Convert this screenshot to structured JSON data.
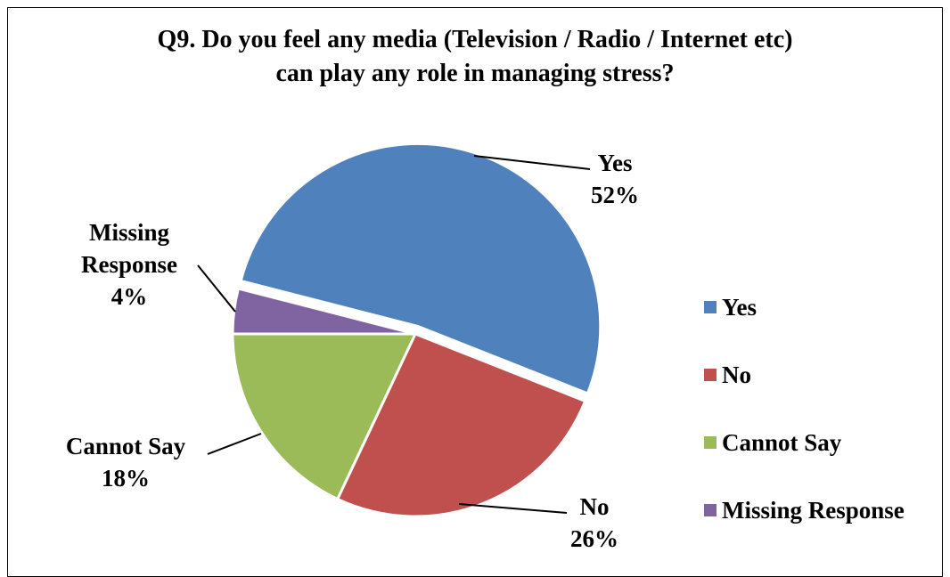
{
  "chart_data": {
    "type": "pie",
    "title_lines": [
      "Q9. Do you feel any media (Television / Radio / Internet etc)",
      "can play any role in managing stress?"
    ],
    "slices": [
      {
        "label": "Yes",
        "value": 52,
        "value_label": "52%",
        "color": "#4F81BD"
      },
      {
        "label": "No",
        "value": 26,
        "value_label": "26%",
        "color": "#C0504D"
      },
      {
        "label": "Cannot Say",
        "value": 18,
        "value_label": "18%",
        "color": "#9BBB59"
      },
      {
        "label": "Missing Response",
        "value": 4,
        "value_label": "4%",
        "color": "#8064A2"
      }
    ],
    "data_label_lines": {
      "Yes": [
        "Yes",
        "52%"
      ],
      "No": [
        "No",
        "26%"
      ],
      "Cannot Say": [
        "Cannot Say",
        "18%"
      ],
      "Missing Response": [
        "Missing",
        "Response",
        "4%"
      ]
    },
    "legend_position": "right",
    "exploded_slice": "Yes"
  }
}
